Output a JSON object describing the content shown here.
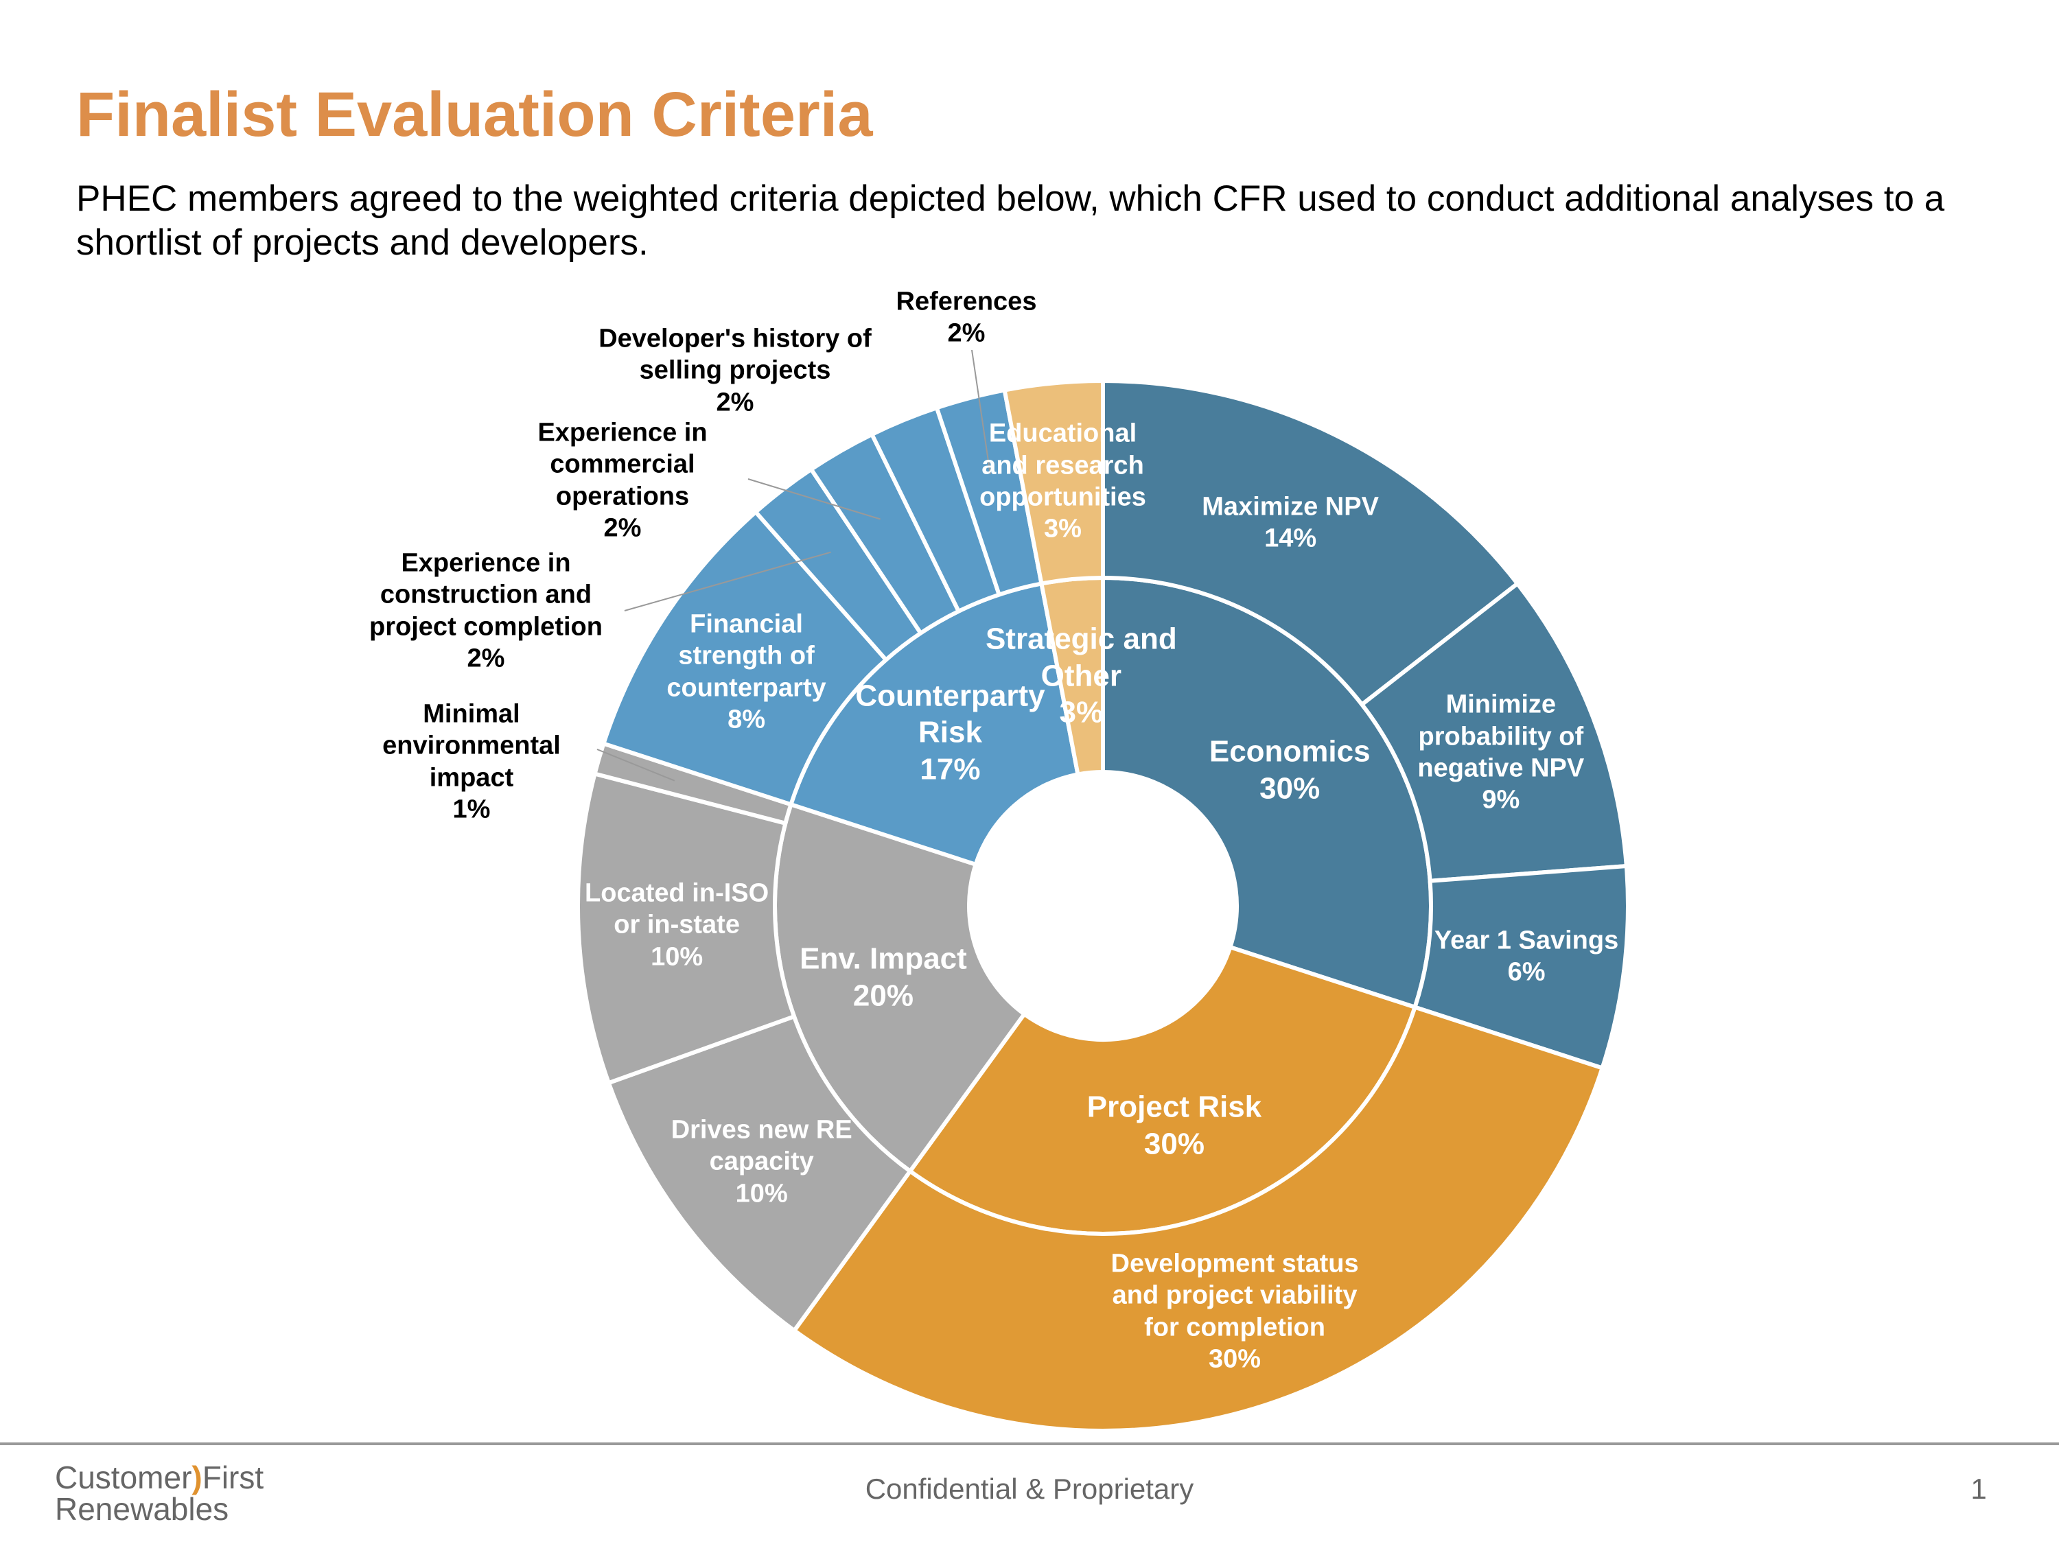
{
  "chart_data": {
    "type": "sunburst",
    "title": "Finalist Evaluation Criteria",
    "subtitle": "PHEC members agreed to the weighted criteria depicted below, which CFR used to conduct additional analyses to a shortlist of projects and developers.",
    "categories": [
      "Economics",
      "Project Risk",
      "Env. Impact",
      "Counterparty Risk",
      "Strategic and Other"
    ],
    "values": [
      30,
      30,
      20,
      17,
      3
    ],
    "value_labels": [
      "30%",
      "30%",
      "20%",
      "17%",
      "3%"
    ],
    "colors": [
      "#497d9b",
      "#e09a35",
      "#a9a9a9",
      "#5a9bc7",
      "#ecbf7a"
    ],
    "children": [
      {
        "categories": [
          "Maximize NPV",
          "Minimize probability of negative NPV",
          "Year 1 Savings"
        ],
        "values": [
          14,
          9,
          6
        ],
        "value_labels": [
          "14%",
          "9%",
          "6%"
        ]
      },
      {
        "categories": [
          "Development status and project viability for completion"
        ],
        "values": [
          30
        ],
        "value_labels": [
          "30%"
        ]
      },
      {
        "categories": [
          "Drives new RE capacity",
          "Located in-ISO or in-state",
          "Minimal environmental impact"
        ],
        "values": [
          10,
          10,
          1
        ],
        "value_labels": [
          "10%",
          "10%",
          "1%"
        ]
      },
      {
        "categories": [
          "Financial strength of counterparty",
          "Experience in construction and project completion",
          "Experience in commercial operations",
          "Developer's history of selling projects",
          "References"
        ],
        "values": [
          8,
          2,
          2,
          2,
          2
        ],
        "value_labels": [
          "8%",
          "2%",
          "2%",
          "2%",
          "2%"
        ]
      },
      {
        "categories": [
          "Educational and research opportunities"
        ],
        "values": [
          3
        ],
        "value_labels": [
          "3%"
        ]
      }
    ]
  },
  "footer": {
    "logo": [
      "Customer",
      "First",
      "Renewables"
    ],
    "note": "Confidential & Proprietary",
    "page": 1
  }
}
